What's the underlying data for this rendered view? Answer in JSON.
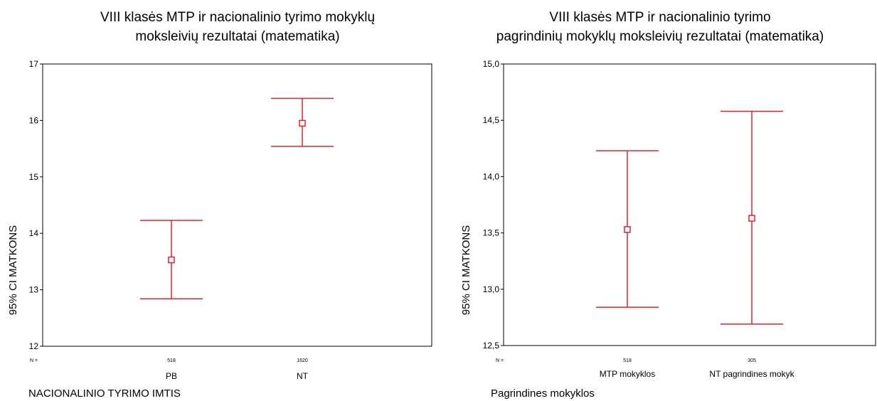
{
  "chart_data": [
    {
      "type": "errorbar",
      "title_lines": [
        "VIII  klasės  MTP  ir  nacionalinio  tyrimo  mokyklų",
        "moksleivių rezultatai (matematika)"
      ],
      "ylabel": "95% CI MATKONS",
      "xlabel": "NACIONALINIO TYRIMO IMTIS",
      "ylim": [
        12,
        17
      ],
      "yticks": [
        "12",
        "13",
        "14",
        "15",
        "16",
        "17"
      ],
      "n_label": "N =",
      "series_color": "#e8202a",
      "categories": [
        "PB",
        "NT"
      ],
      "n": [
        "518",
        "1620"
      ],
      "mean": [
        13.53,
        15.95
      ],
      "lower": [
        12.84,
        15.54
      ],
      "upper": [
        14.23,
        16.39
      ]
    },
    {
      "type": "errorbar",
      "title_lines": [
        "VIII  klasės  MTP  ir  nacionalinio  tyrimo",
        "pagrindinių  mokyklų moksleivių rezultatai (matematika)"
      ],
      "ylabel": "95% CI MATKONS",
      "xlabel": "Pagrindines mokyklos",
      "ylim": [
        12.5,
        15.0
      ],
      "yticks": [
        "12,5",
        "13,0",
        "13,5",
        "14,0",
        "14,5",
        "15,0"
      ],
      "n_label": "N =",
      "series_color": "#e8202a",
      "categories": [
        "MTP mokyklos",
        "NT pagrindines mokyk"
      ],
      "n": [
        "518",
        "305"
      ],
      "mean": [
        13.53,
        13.63
      ],
      "lower": [
        12.84,
        12.69
      ],
      "upper": [
        14.23,
        14.58
      ]
    }
  ]
}
